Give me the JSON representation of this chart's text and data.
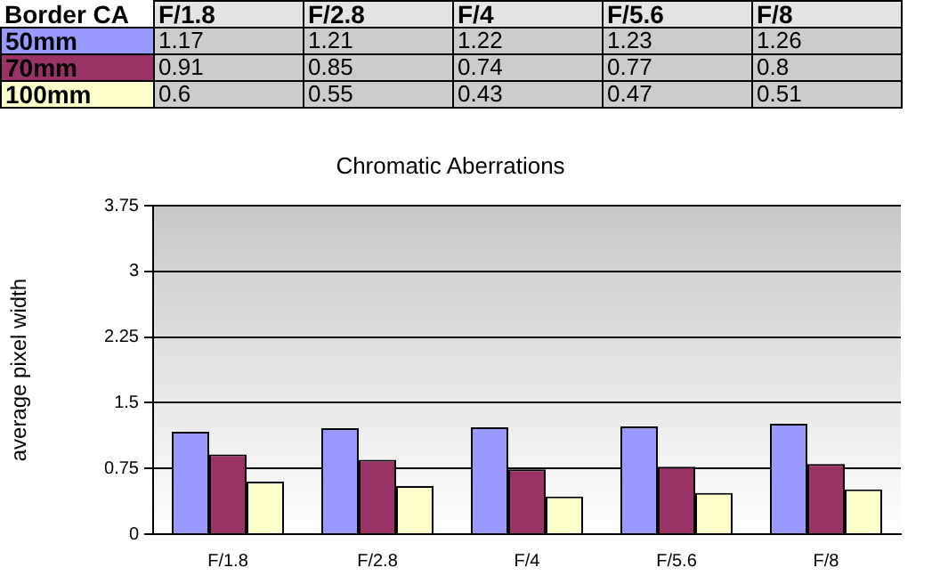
{
  "chart_data": {
    "type": "bar",
    "title": "Chromatic Aberrations",
    "ylabel": "average pixel width",
    "legend_title": "Border CA",
    "categories": [
      "F/1.8",
      "F/2.8",
      "F/4",
      "F/5.6",
      "F/8"
    ],
    "series": [
      {
        "name": "50mm",
        "color": "#9999ff",
        "values": [
          1.17,
          1.21,
          1.22,
          1.23,
          1.26
        ]
      },
      {
        "name": "70mm",
        "color": "#993366",
        "values": [
          0.91,
          0.85,
          0.74,
          0.77,
          0.8
        ]
      },
      {
        "name": "100mm",
        "color": "#ffffcc",
        "values": [
          0.6,
          0.55,
          0.43,
          0.47,
          0.51
        ]
      }
    ],
    "ylim": [
      0,
      3.75
    ],
    "yticks": [
      0,
      0.75,
      1.5,
      2.25,
      3,
      3.75
    ],
    "grid": "y",
    "data_labels": true,
    "legend": "top left"
  }
}
